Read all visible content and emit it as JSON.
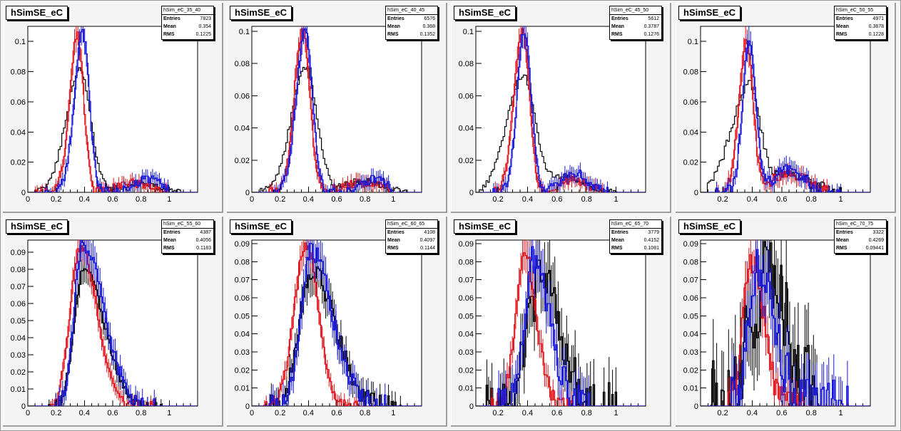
{
  "colors": {
    "black": "#000000",
    "red": "#e0141c",
    "blue": "#1717d9"
  },
  "labels": {
    "entries": "Entries",
    "mean": "Mean",
    "rms": "RMS"
  },
  "chart_data": [
    {
      "type": "histogram",
      "title": "hSimSE_eC",
      "stats": {
        "name": "hSim_eC_35_40",
        "entries": "7823",
        "mean": "0.354",
        "rms": "0.1225"
      },
      "xlim": [
        0,
        1.2
      ],
      "ylim": [
        0,
        0.11
      ],
      "xticks": [
        0,
        0.2,
        0.4,
        0.6,
        0.8,
        1
      ],
      "yticks": [
        0,
        0.02,
        0.04,
        0.06,
        0.08,
        0.1
      ],
      "series": [
        {
          "color": "black",
          "peak": 0.37,
          "amp": 0.081,
          "sigL": 0.1,
          "sigR": 0.075,
          "tailAmp": 0.006,
          "tailMu": 0.78,
          "tailSig": 0.12,
          "xmin": 0.06,
          "xmax": 1.1,
          "noise": 0.002,
          "errbars": false
        },
        {
          "color": "red",
          "peak": 0.35,
          "amp": 0.105,
          "sigL": 0.055,
          "sigR": 0.045,
          "tailAmp": 0.006,
          "tailMu": 0.75,
          "tailSig": 0.12,
          "xmin": 0.05,
          "xmax": 1.0,
          "noise": 0.003,
          "errbars": true
        },
        {
          "color": "blue",
          "peak": 0.39,
          "amp": 0.106,
          "sigL": 0.06,
          "sigR": 0.045,
          "tailAmp": 0.009,
          "tailMu": 0.85,
          "tailSig": 0.09,
          "xmin": 0.12,
          "xmax": 1.0,
          "noise": 0.003,
          "errbars": true
        }
      ]
    },
    {
      "type": "histogram",
      "title": "hSimSE_eC",
      "stats": {
        "name": "hSim_eC_40_45",
        "entries": "6576",
        "mean": "0.368",
        "rms": "0.1352"
      },
      "xlim": [
        0,
        1.2
      ],
      "ylim": [
        0,
        0.103
      ],
      "xticks": [
        0,
        0.2,
        0.4,
        0.6,
        0.8,
        1
      ],
      "yticks": [
        0,
        0.02,
        0.04,
        0.06,
        0.08,
        0.1
      ],
      "series": [
        {
          "color": "black",
          "peak": 0.38,
          "amp": 0.078,
          "sigL": 0.1,
          "sigR": 0.08,
          "tailAmp": 0.007,
          "tailMu": 0.78,
          "tailSig": 0.13,
          "xmin": 0.06,
          "xmax": 1.1,
          "noise": 0.002,
          "errbars": false
        },
        {
          "color": "red",
          "peak": 0.36,
          "amp": 0.1,
          "sigL": 0.06,
          "sigR": 0.05,
          "tailAmp": 0.006,
          "tailMu": 0.78,
          "tailSig": 0.13,
          "xmin": 0.08,
          "xmax": 1.0,
          "noise": 0.003,
          "errbars": true
        },
        {
          "color": "blue",
          "peak": 0.38,
          "amp": 0.1,
          "sigL": 0.065,
          "sigR": 0.05,
          "tailAmp": 0.008,
          "tailMu": 0.86,
          "tailSig": 0.09,
          "xmin": 0.12,
          "xmax": 1.0,
          "noise": 0.003,
          "errbars": true
        }
      ]
    },
    {
      "type": "histogram",
      "title": "hSimSE_eC",
      "stats": {
        "name": "hSim_eC_45_50",
        "entries": "5612",
        "mean": "0.3787",
        "rms": "0.1276"
      },
      "xlim": [
        0.05,
        1.2
      ],
      "ylim": [
        0,
        0.103
      ],
      "xticks": [
        0.2,
        0.4,
        0.6,
        0.8,
        1
      ],
      "yticks": [
        0,
        0.02,
        0.04,
        0.06,
        0.08,
        0.1
      ],
      "series": [
        {
          "color": "black",
          "peak": 0.37,
          "amp": 0.072,
          "sigL": 0.11,
          "sigR": 0.08,
          "tailAmp": 0.01,
          "tailMu": 0.65,
          "tailSig": 0.12,
          "xmin": 0.07,
          "xmax": 1.0,
          "noise": 0.002,
          "errbars": false
        },
        {
          "color": "red",
          "peak": 0.37,
          "amp": 0.1,
          "sigL": 0.06,
          "sigR": 0.045,
          "tailAmp": 0.008,
          "tailMu": 0.7,
          "tailSig": 0.1,
          "xmin": 0.1,
          "xmax": 0.95,
          "noise": 0.003,
          "errbars": true
        },
        {
          "color": "blue",
          "peak": 0.38,
          "amp": 0.1,
          "sigL": 0.05,
          "sigR": 0.045,
          "tailAmp": 0.012,
          "tailMu": 0.72,
          "tailSig": 0.09,
          "xmin": 0.15,
          "xmax": 0.95,
          "noise": 0.003,
          "errbars": true
        }
      ]
    },
    {
      "type": "histogram",
      "title": "hSimSE_eC",
      "stats": {
        "name": "hSim_eC_50_55",
        "entries": "4971",
        "mean": "0.3878",
        "rms": "0.1228"
      },
      "xlim": [
        0.05,
        1.2
      ],
      "ylim": [
        0,
        0.11
      ],
      "xticks": [
        0.2,
        0.4,
        0.6,
        0.8,
        1
      ],
      "yticks": [
        0,
        0.02,
        0.04,
        0.06,
        0.08,
        0.1
      ],
      "series": [
        {
          "color": "black",
          "peak": 0.38,
          "amp": 0.07,
          "sigL": 0.12,
          "sigR": 0.07,
          "tailAmp": 0.012,
          "tailMu": 0.65,
          "tailSig": 0.15,
          "xmin": 0.1,
          "xmax": 1.0,
          "noise": 0.003,
          "errbars": false
        },
        {
          "color": "red",
          "peak": 0.36,
          "amp": 0.1,
          "sigL": 0.05,
          "sigR": 0.045,
          "tailAmp": 0.012,
          "tailMu": 0.65,
          "tailSig": 0.11,
          "xmin": 0.15,
          "xmax": 0.95,
          "noise": 0.004,
          "errbars": true
        },
        {
          "color": "blue",
          "peak": 0.38,
          "amp": 0.1,
          "sigL": 0.045,
          "sigR": 0.045,
          "tailAmp": 0.016,
          "tailMu": 0.65,
          "tailSig": 0.1,
          "xmin": 0.15,
          "xmax": 1.0,
          "noise": 0.004,
          "errbars": true
        }
      ]
    },
    {
      "type": "histogram",
      "title": "hSimSE_eC",
      "stats": {
        "name": "hSim_eC_55_60",
        "entries": "4387",
        "mean": "0.4056",
        "rms": "0.1183"
      },
      "xlim": [
        0,
        1.2
      ],
      "ylim": [
        0,
        0.097
      ],
      "xticks": [
        0,
        0.2,
        0.4,
        0.6,
        0.8,
        1
      ],
      "yticks": [
        0,
        0.01,
        0.02,
        0.03,
        0.04,
        0.05,
        0.06,
        0.07,
        0.08,
        0.09
      ],
      "series": [
        {
          "color": "black",
          "peak": 0.4,
          "amp": 0.08,
          "sigL": 0.07,
          "sigR": 0.14,
          "tailAmp": 0,
          "tailMu": 0.7,
          "tailSig": 0.1,
          "xmin": 0.12,
          "xmax": 0.95,
          "noise": 0.003,
          "errbars": true
        },
        {
          "color": "red",
          "peak": 0.37,
          "amp": 0.093,
          "sigL": 0.07,
          "sigR": 0.12,
          "tailAmp": 0,
          "tailMu": 0.7,
          "tailSig": 0.1,
          "xmin": 0.12,
          "xmax": 0.9,
          "noise": 0.003,
          "errbars": true
        },
        {
          "color": "blue",
          "peak": 0.39,
          "amp": 0.095,
          "sigL": 0.06,
          "sigR": 0.15,
          "tailAmp": 0,
          "tailMu": 0.7,
          "tailSig": 0.1,
          "xmin": 0.15,
          "xmax": 0.9,
          "noise": 0.005,
          "errbars": true
        }
      ]
    },
    {
      "type": "histogram",
      "title": "hSimSE_eC",
      "stats": {
        "name": "hSim_eC_60_65",
        "entries": "4108",
        "mean": "0.4097",
        "rms": "0.1144"
      },
      "xlim": [
        0,
        1.2
      ],
      "ylim": [
        0,
        0.092
      ],
      "xticks": [
        0,
        0.2,
        0.4,
        0.6,
        0.8,
        1
      ],
      "yticks": [
        0,
        0.01,
        0.02,
        0.03,
        0.04,
        0.05,
        0.06,
        0.07,
        0.08,
        0.09
      ],
      "series": [
        {
          "color": "black",
          "peak": 0.43,
          "amp": 0.075,
          "sigL": 0.09,
          "sigR": 0.16,
          "tailAmp": 0,
          "tailMu": 0.7,
          "tailSig": 0.1,
          "xmin": 0.12,
          "xmax": 1.05,
          "noise": 0.006,
          "errbars": true
        },
        {
          "color": "red",
          "peak": 0.38,
          "amp": 0.09,
          "sigL": 0.08,
          "sigR": 0.09,
          "tailAmp": 0,
          "tailMu": 0.7,
          "tailSig": 0.1,
          "xmin": 0.08,
          "xmax": 0.75,
          "noise": 0.003,
          "errbars": true
        },
        {
          "color": "blue",
          "peak": 0.42,
          "amp": 0.085,
          "sigL": 0.07,
          "sigR": 0.15,
          "tailAmp": 0,
          "tailMu": 0.7,
          "tailSig": 0.1,
          "xmin": 0.12,
          "xmax": 0.95,
          "noise": 0.006,
          "errbars": true
        }
      ]
    },
    {
      "type": "histogram",
      "title": "hSimSE_eC",
      "stats": {
        "name": "hSim_eC_65_70",
        "entries": "3779",
        "mean": "0.4152",
        "rms": "0.1081"
      },
      "xlim": [
        0.05,
        1.2
      ],
      "ylim": [
        0,
        0.092
      ],
      "xticks": [
        0.2,
        0.4,
        0.6,
        0.8,
        1
      ],
      "yticks": [
        0,
        0.01,
        0.02,
        0.03,
        0.04,
        0.05,
        0.06,
        0.07,
        0.08,
        0.09
      ],
      "series": [
        {
          "color": "black",
          "peak": 0.5,
          "amp": 0.07,
          "sigL": 0.1,
          "sigR": 0.13,
          "tailAmp": 0,
          "tailMu": 0.7,
          "tailSig": 0.1,
          "xmin": 0.12,
          "xmax": 1.0,
          "noise": 0.015,
          "errbars": true
        },
        {
          "color": "red",
          "peak": 0.38,
          "amp": 0.085,
          "sigL": 0.06,
          "sigR": 0.08,
          "tailAmp": 0,
          "tailMu": 0.7,
          "tailSig": 0.1,
          "xmin": 0.15,
          "xmax": 0.7,
          "noise": 0.005,
          "errbars": true
        },
        {
          "color": "blue",
          "peak": 0.44,
          "amp": 0.08,
          "sigL": 0.06,
          "sigR": 0.11,
          "tailAmp": 0,
          "tailMu": 0.7,
          "tailSig": 0.1,
          "xmin": 0.2,
          "xmax": 0.85,
          "noise": 0.01,
          "errbars": true
        }
      ]
    },
    {
      "type": "histogram",
      "title": "hSimSE_eC",
      "stats": {
        "name": "hSim_eC_70_75",
        "entries": "3322",
        "mean": "0.4269",
        "rms": "0.09441"
      },
      "xlim": [
        0.05,
        1.2
      ],
      "ylim": [
        0,
        0.092
      ],
      "xticks": [
        0.2,
        0.4,
        0.6,
        0.8,
        1
      ],
      "yticks": [
        0,
        0.01,
        0.02,
        0.03,
        0.04,
        0.05,
        0.06,
        0.07,
        0.08,
        0.09
      ],
      "series": [
        {
          "color": "black",
          "peak": 0.5,
          "amp": 0.07,
          "sigL": 0.12,
          "sigR": 0.14,
          "tailAmp": 0,
          "tailMu": 0.7,
          "tailSig": 0.1,
          "xmin": 0.1,
          "xmax": 0.85,
          "noise": 0.025,
          "errbars": true
        },
        {
          "color": "red",
          "peak": 0.4,
          "amp": 0.08,
          "sigL": 0.06,
          "sigR": 0.08,
          "tailAmp": 0,
          "tailMu": 0.7,
          "tailSig": 0.1,
          "xmin": 0.2,
          "xmax": 0.75,
          "noise": 0.008,
          "errbars": true
        },
        {
          "color": "blue",
          "peak": 0.46,
          "amp": 0.08,
          "sigL": 0.07,
          "sigR": 0.1,
          "tailAmp": 0,
          "tailMu": 0.7,
          "tailSig": 0.1,
          "xmin": 0.25,
          "xmax": 1.05,
          "noise": 0.015,
          "errbars": true
        }
      ]
    }
  ]
}
